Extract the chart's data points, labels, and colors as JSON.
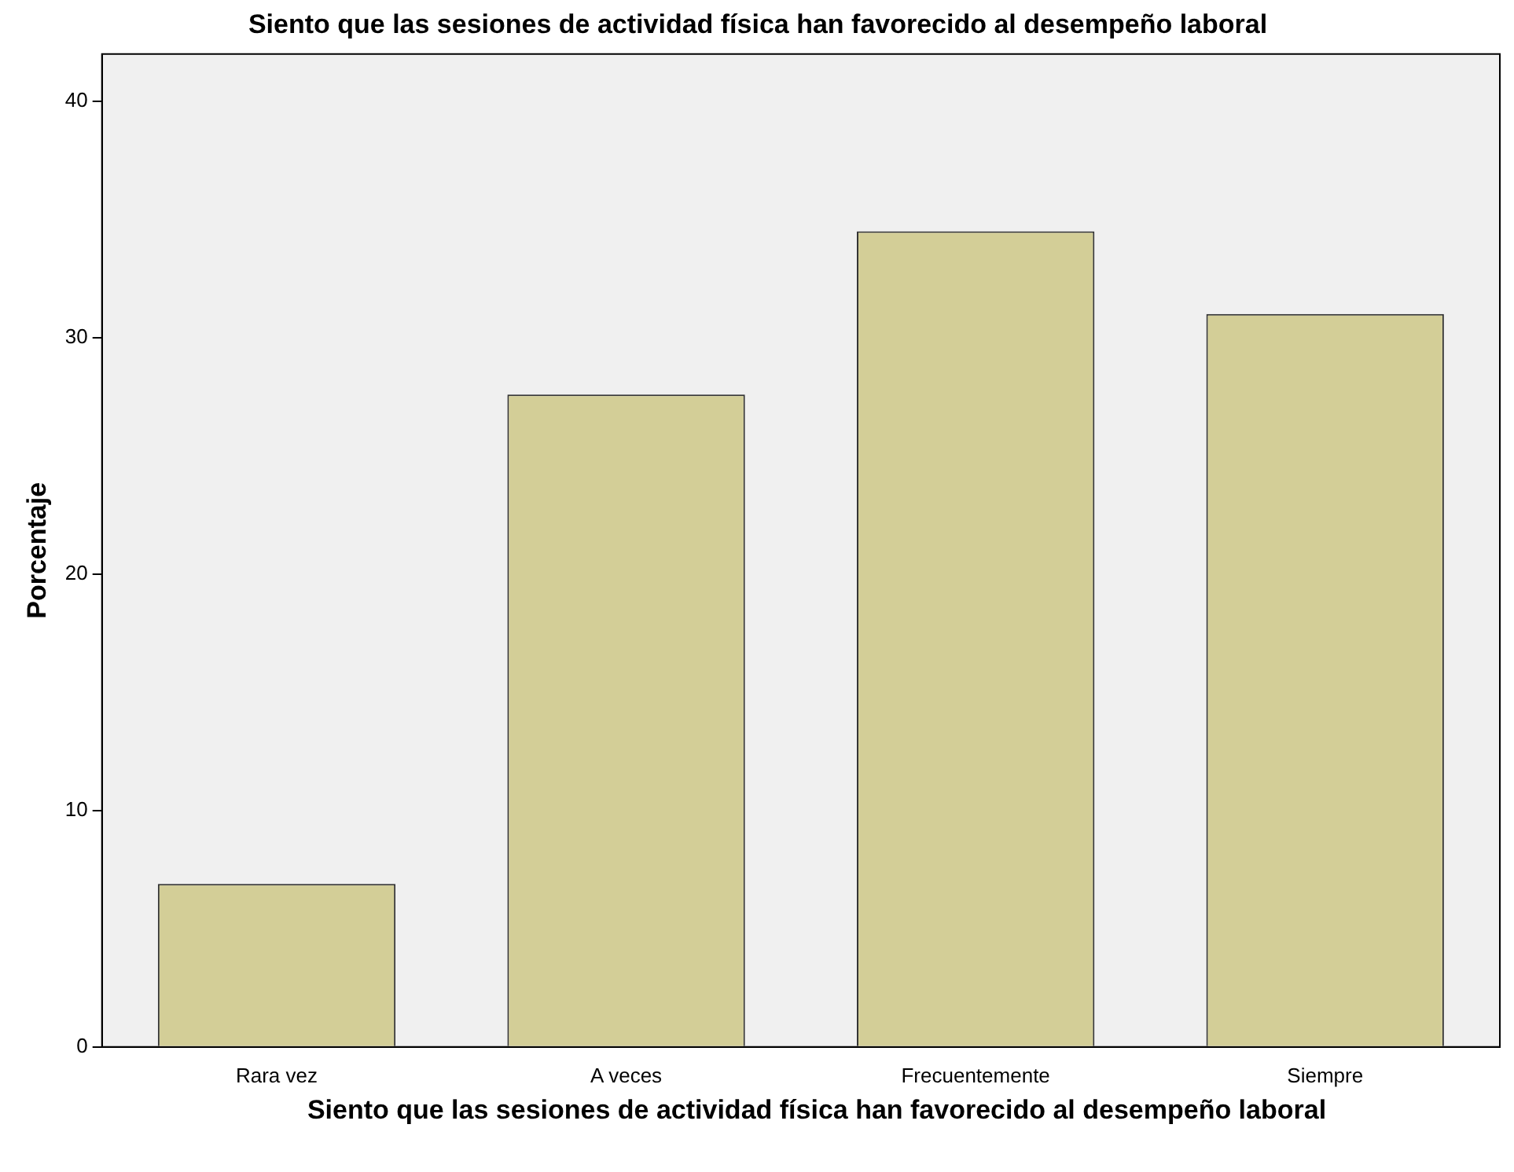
{
  "chart_data": {
    "type": "bar",
    "title": "Siento que las sesiones de actividad física han favorecido al desempeño laboral",
    "xlabel": "Siento que las sesiones de actividad física han favorecido al desempeño laboral",
    "ylabel": "Porcentaje",
    "categories": [
      "Rara vez",
      "A veces",
      "Frecuentemente",
      "Siempre"
    ],
    "values": [
      6.9,
      27.6,
      34.5,
      31.0
    ],
    "color": "#d3ce97",
    "ylim": [
      0,
      42
    ],
    "yticks": [
      0,
      10,
      20,
      30,
      40
    ],
    "legend": false
  }
}
